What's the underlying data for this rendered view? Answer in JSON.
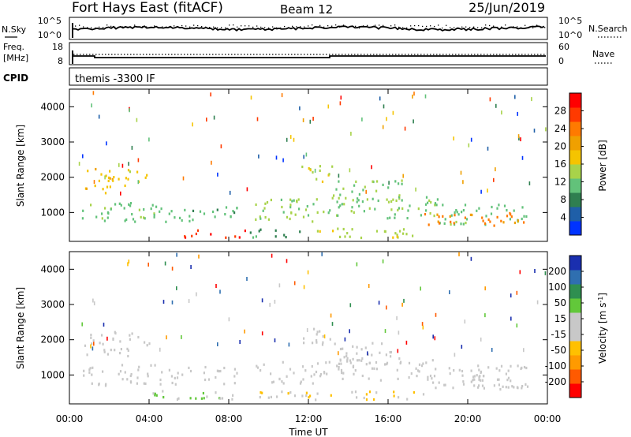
{
  "header": {
    "station": "Fort Hays East (fitACF)",
    "beam": "Beam 12",
    "date": "25/Jun/2019"
  },
  "noise_panel": {
    "left_label": "N.Sky",
    "right_label": "N.Search",
    "left_ticks": [
      "10^5",
      "10^0"
    ],
    "right_ticks": [
      "10^5",
      "10^0"
    ]
  },
  "freq_panel": {
    "left_label_line1": "Freq.",
    "left_label_line2": "[MHz]",
    "right_label": "Nave",
    "left_ticks": [
      "18",
      "8"
    ],
    "right_ticks": [
      "60",
      "0"
    ]
  },
  "cpid_panel": {
    "label": "CPID",
    "text": "themis -3300 IF"
  },
  "x_axis": {
    "title": "Time UT",
    "ticks": [
      "00:00",
      "04:00",
      "08:00",
      "12:00",
      "16:00",
      "20:00",
      "00:00"
    ]
  },
  "chart_data": [
    {
      "type": "heatmap",
      "title": "",
      "xlabel": "Time UT",
      "ylabel": "Slant Range [km]",
      "xlim": [
        0,
        24
      ],
      "ylim": [
        180,
        4500
      ],
      "y_ticks": [
        "1000",
        "2000",
        "3000",
        "4000"
      ],
      "colorbar": {
        "label": "Power [dB]",
        "ticks": [
          "4",
          "8",
          "12",
          "16",
          "20",
          "24",
          "28"
        ],
        "range": [
          0,
          30
        ],
        "colors": [
          "#0033ff",
          "#1f5fa8",
          "#2f7f50",
          "#62c27a",
          "#a8d34a",
          "#f5c400",
          "#f0a000",
          "#ff7a00",
          "#ff3a00",
          "#ff0000"
        ]
      },
      "bands": [
        {
          "t0": 0.6,
          "t1": 5.1,
          "r0": 650,
          "r1": 1250,
          "v": 11
        },
        {
          "t0": 5.1,
          "t1": 8.4,
          "r0": 700,
          "r1": 1200,
          "v": 10
        },
        {
          "t0": 9.3,
          "t1": 13.0,
          "r0": 700,
          "r1": 1350,
          "v": 13
        },
        {
          "t0": 13.0,
          "t1": 18.5,
          "r0": 800,
          "r1": 1400,
          "v": 12
        },
        {
          "t0": 18.5,
          "t1": 23.0,
          "r0": 600,
          "r1": 1250,
          "v": 11
        },
        {
          "t0": 0.7,
          "t1": 3.0,
          "r0": 1500,
          "r1": 2200,
          "v": 17
        },
        {
          "t0": 3.0,
          "t1": 4.0,
          "r0": 1800,
          "r1": 2150,
          "v": 16
        },
        {
          "t0": 11.6,
          "t1": 13.2,
          "r0": 1800,
          "r1": 2300,
          "v": 15
        },
        {
          "t0": 13.2,
          "t1": 16.8,
          "r0": 1300,
          "r1": 1900,
          "v": 12
        },
        {
          "t0": 5.7,
          "t1": 9.0,
          "r0": 250,
          "r1": 480,
          "v": 27
        },
        {
          "t0": 8.8,
          "t1": 11.6,
          "r0": 250,
          "r1": 480,
          "v": 8
        },
        {
          "t0": 11.6,
          "t1": 17.8,
          "r0": 250,
          "r1": 520,
          "v": 14
        },
        {
          "t0": 17.8,
          "t1": 23.0,
          "r0": 550,
          "r1": 950,
          "v": 22
        }
      ]
    },
    {
      "type": "heatmap",
      "title": "",
      "xlabel": "Time UT",
      "ylabel": "Slant Range [km]",
      "xlim": [
        0,
        24
      ],
      "ylim": [
        180,
        4500
      ],
      "y_ticks": [
        "1000",
        "2000",
        "3000",
        "4000"
      ],
      "colorbar": {
        "label": "Velocity [m s^-1]",
        "ticks": [
          "200",
          "100",
          "50",
          "15",
          "-15",
          "-50",
          "-100",
          "-200"
        ],
        "range": [
          -250,
          250
        ],
        "colors": [
          "#ff0000",
          "#ff5a00",
          "#ff9a00",
          "#ffc000",
          "#c8c8c8",
          "#c8c8c8",
          "#62c83a",
          "#2f8f50",
          "#2f6fb0",
          "#1a2faf"
        ]
      },
      "bands": [
        {
          "t0": 0.6,
          "t1": 5.1,
          "r0": 650,
          "r1": 1250,
          "v": 0
        },
        {
          "t0": 5.1,
          "t1": 8.4,
          "r0": 700,
          "r1": 1200,
          "v": 0
        },
        {
          "t0": 9.3,
          "t1": 13.0,
          "r0": 700,
          "r1": 1350,
          "v": 0
        },
        {
          "t0": 13.0,
          "t1": 18.5,
          "r0": 800,
          "r1": 1400,
          "v": 0
        },
        {
          "t0": 18.5,
          "t1": 23.0,
          "r0": 600,
          "r1": 1250,
          "v": 0
        },
        {
          "t0": 0.7,
          "t1": 3.0,
          "r0": 1500,
          "r1": 2200,
          "v": 0
        },
        {
          "t0": 3.0,
          "t1": 4.0,
          "r0": 1800,
          "r1": 2150,
          "v": 0
        },
        {
          "t0": 11.6,
          "t1": 13.2,
          "r0": 1800,
          "r1": 2300,
          "v": 0
        },
        {
          "t0": 13.2,
          "t1": 16.8,
          "r0": 1300,
          "r1": 1900,
          "v": 0
        },
        {
          "t0": 3.7,
          "t1": 7.0,
          "r0": 250,
          "r1": 520,
          "v": 60
        },
        {
          "t0": 7.0,
          "t1": 8.9,
          "r0": 250,
          "r1": 480,
          "v": 30
        },
        {
          "t0": 8.9,
          "t1": 17.8,
          "r0": 250,
          "r1": 500,
          "v": -45
        },
        {
          "t0": 17.8,
          "t1": 23.0,
          "r0": 550,
          "r1": 950,
          "v": 0
        }
      ]
    }
  ]
}
